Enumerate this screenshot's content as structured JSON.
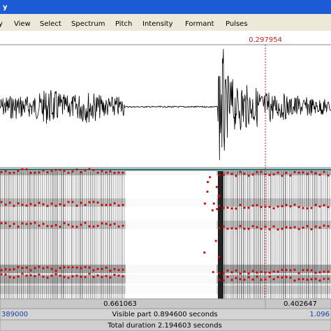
{
  "window": {
    "title": "y"
  },
  "menu": [
    "y",
    "View",
    "Select",
    "Spectrum",
    "Pitch",
    "Intensity",
    "Formant",
    "Pulses"
  ],
  "cursor_label": "0.297954",
  "status": {
    "selection_left": "0.661063",
    "selection_right": "0.402647",
    "visible_start": "389000",
    "visible_part": "Visible part 0.894600 seconds",
    "visible_end": "1.096",
    "total": "Total duration 2.194603 seconds"
  }
}
